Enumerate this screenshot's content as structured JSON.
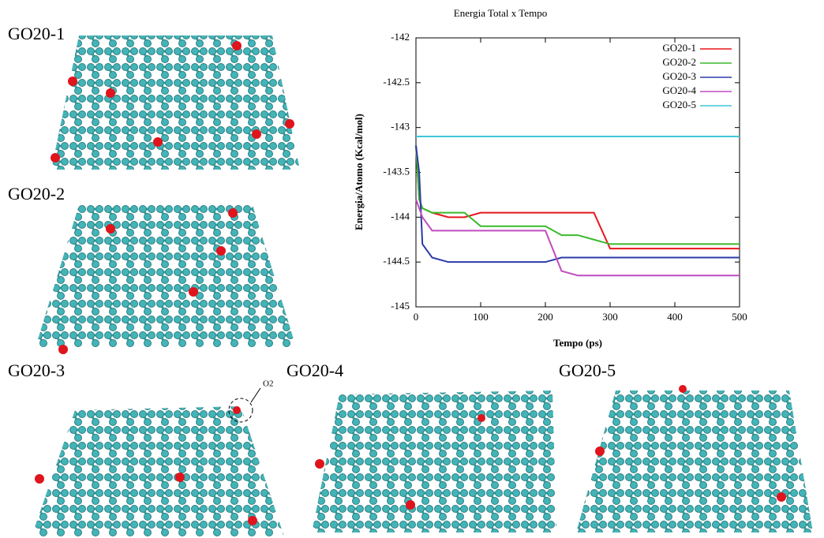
{
  "panel_labels": [
    "GO20-1",
    "GO20-2",
    "GO20-3",
    "GO20-4",
    "GO20-5"
  ],
  "o2_label": "O2",
  "chart_data": {
    "type": "line",
    "title": "Energia Total x Tempo",
    "x_label": "Tempo (ps)",
    "y_label": "Energia/Atomo (Kcal/mol)",
    "x": [
      0,
      5,
      10,
      25,
      50,
      75,
      100,
      125,
      150,
      175,
      200,
      225,
      250,
      275,
      300,
      325,
      350,
      375,
      400,
      425,
      450,
      475,
      500
    ],
    "series": [
      {
        "name": "GO20-1",
        "color": "#e8161c",
        "values": [
          -143.2,
          -143.8,
          -143.9,
          -143.95,
          -144.0,
          -144.0,
          -143.95,
          -143.95,
          -143.95,
          -143.95,
          -143.95,
          -143.95,
          -143.95,
          -143.95,
          -144.35,
          -144.35,
          -144.35,
          -144.35,
          -144.35,
          -144.35,
          -144.35,
          -144.35,
          -144.35
        ]
      },
      {
        "name": "GO20-2",
        "color": "#3cb92e",
        "values": [
          -143.2,
          -143.8,
          -143.9,
          -143.95,
          -143.95,
          -143.95,
          -144.1,
          -144.1,
          -144.1,
          -144.1,
          -144.1,
          -144.2,
          -144.2,
          -144.25,
          -144.3,
          -144.3,
          -144.3,
          -144.3,
          -144.3,
          -144.3,
          -144.3,
          -144.3,
          -144.3
        ]
      },
      {
        "name": "GO20-3",
        "color": "#2b3aa8",
        "values": [
          -143.2,
          -143.5,
          -144.3,
          -144.45,
          -144.5,
          -144.5,
          -144.5,
          -144.5,
          -144.5,
          -144.5,
          -144.5,
          -144.45,
          -144.45,
          -144.45,
          -144.45,
          -144.45,
          -144.45,
          -144.45,
          -144.45,
          -144.45,
          -144.45,
          -144.45,
          -144.45
        ]
      },
      {
        "name": "GO20-4",
        "color": "#c04cc0",
        "values": [
          -143.8,
          -143.9,
          -144.0,
          -144.15,
          -144.15,
          -144.15,
          -144.15,
          -144.15,
          -144.15,
          -144.15,
          -144.15,
          -144.6,
          -144.65,
          -144.65,
          -144.65,
          -144.65,
          -144.65,
          -144.65,
          -144.65,
          -144.65,
          -144.65,
          -144.65,
          -144.65
        ]
      },
      {
        "name": "GO20-5",
        "color": "#3fc7d6",
        "values": [
          -143.1,
          -143.1,
          -143.1,
          -143.1,
          -143.1,
          -143.1,
          -143.1,
          -143.1,
          -143.1,
          -143.1,
          -143.1,
          -143.1,
          -143.1,
          -143.1,
          -143.1,
          -143.1,
          -143.1,
          -143.1,
          -143.1,
          -143.1,
          -143.1,
          -143.1,
          -143.1
        ]
      }
    ],
    "xlim": [
      0,
      500
    ],
    "ylim": [
      -145,
      -142
    ],
    "xticks": [
      0,
      100,
      200,
      300,
      400,
      500
    ],
    "yticks": [
      -142,
      -142.5,
      -143,
      -143.5,
      -144,
      -144.5,
      -145
    ],
    "legend": "upper-right"
  }
}
